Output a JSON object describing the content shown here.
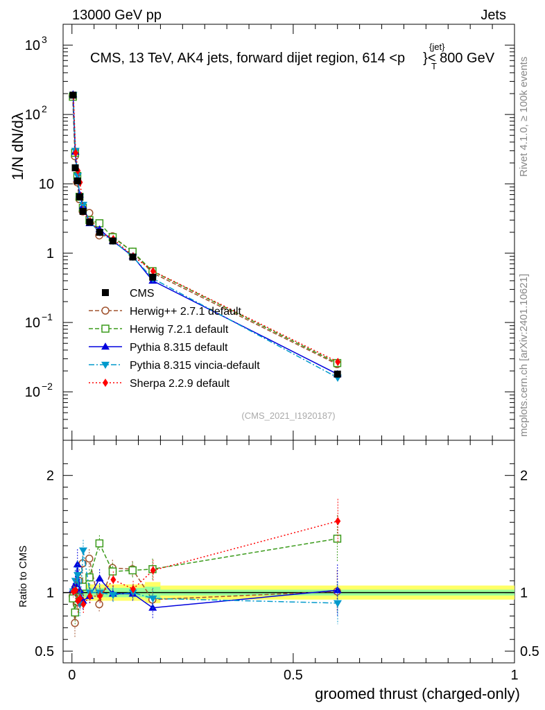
{
  "header": {
    "left": "13000 GeV pp",
    "right": "Jets"
  },
  "chart_data": {
    "type": "scatter",
    "title": "CMS, 13 TeV, AK4 jets, forward dijet region, 614 <p",
    "title_sup": "{jet}",
    "title_sub": "T",
    "title_tail": "}< 800 GeV",
    "xlabel": "groomed thrust (charged-only)",
    "ylabel_main": "1/N dN/dλ",
    "ylabel_ratio": "Ratio to CMS",
    "xlim": [
      -0.02,
      1.0
    ],
    "ylim": [
      0.002,
      2000
    ],
    "ratio_ylim": [
      0.4,
      2.3
    ],
    "yscale": "log",
    "x_ticks": [
      0,
      0.5,
      1
    ],
    "x_tick_labels": [
      "0",
      "0.5",
      "1"
    ],
    "y_ticks": [
      {
        "value": 0.01,
        "label": "10",
        "exp": "−2"
      },
      {
        "value": 0.1,
        "label": "10",
        "exp": "−1"
      },
      {
        "value": 1,
        "label": "1",
        "exp": ""
      },
      {
        "value": 10,
        "label": "10",
        "exp": ""
      },
      {
        "value": 100,
        "label": "10",
        "exp": "2"
      },
      {
        "value": 1000,
        "label": "10",
        "exp": "3"
      }
    ],
    "ratio_ticks": [
      {
        "value": 0.5,
        "label": "0.5"
      },
      {
        "value": 1,
        "label": "1"
      },
      {
        "value": 2,
        "label": "2"
      }
    ],
    "side_label_top": "Rivet 4.1.0, ≥ 100k events",
    "side_label_bottom": "mcplots.cern.ch [arXiv:2401.10621]",
    "analysis_id": "(CMS_2021_I1920187)",
    "x": [
      0.0025,
      0.0075,
      0.0125,
      0.0175,
      0.025,
      0.04,
      0.0625,
      0.0925,
      0.1375,
      0.1825,
      0.6
    ],
    "bin_edges": [
      0,
      0.005,
      0.01,
      0.015,
      0.02,
      0.03,
      0.05,
      0.075,
      0.11,
      0.165,
      0.2,
      1.0
    ],
    "data": {
      "name": "CMS",
      "values": [
        190,
        17,
        11,
        6.5,
        4.0,
        2.8,
        2.0,
        1.5,
        0.88,
        0.45,
        0.018
      ],
      "errors": [
        3,
        1,
        0.6,
        0.35,
        0.2,
        0.12,
        0.09,
        0.07,
        0.05,
        0.04,
        0.002
      ],
      "band_inner": [
        0.04,
        0.05,
        0.05,
        0.05,
        0.04,
        0.04,
        0.04,
        0.04,
        0.04,
        0.05,
        0.025
      ],
      "band_outer": [
        0.06,
        0.08,
        0.08,
        0.08,
        0.07,
        0.07,
        0.07,
        0.07,
        0.07,
        0.09,
        0.06
      ]
    },
    "series": [
      {
        "name": "Herwig++ 2.7.1 default",
        "color": "#a0522d",
        "marker": "circle-open",
        "dash": "6,3",
        "values": [
          185,
          25,
          10.5,
          6.0,
          4.0,
          3.8,
          1.8,
          1.75,
          1.05,
          0.52,
          0.025
        ],
        "ratio": [
          0.97,
          0.74,
          0.92,
          1.1,
          1.25,
          1.29,
          0.9,
          1.21,
          1.2,
          0.94,
          1.01
        ],
        "ratio_err": [
          0.05,
          0.13,
          0.1,
          0.1,
          0.09,
          0.08,
          0.07,
          0.07,
          0.07,
          0.09,
          0.18
        ]
      },
      {
        "name": "Herwig 7.2.1 default",
        "color": "#3a9a1a",
        "marker": "square-open",
        "dash": "6,3",
        "values": [
          180,
          28,
          13,
          6.5,
          4.5,
          3.0,
          2.7,
          1.7,
          1.05,
          0.55,
          0.026
        ],
        "ratio": [
          0.95,
          0.83,
          1.04,
          1.02,
          1.05,
          1.13,
          1.42,
          1.18,
          1.19,
          1.2,
          1.46
        ],
        "ratio_err": [
          0.05,
          0.1,
          0.1,
          0.09,
          0.08,
          0.07,
          0.07,
          0.07,
          0.07,
          0.09,
          0.2
        ]
      },
      {
        "name": "Pythia 8.315 default",
        "color": "#0000dd",
        "marker": "triangle-up",
        "dash": "",
        "values": [
          195,
          29,
          12,
          7.0,
          4.8,
          2.7,
          2.2,
          1.5,
          0.9,
          0.4,
          0.018
        ],
        "ratio": [
          1.03,
          1.07,
          1.24,
          1.02,
          0.93,
          0.97,
          1.12,
          0.99,
          0.99,
          0.87,
          1.02
        ],
        "ratio_err": [
          0.05,
          0.12,
          0.13,
          0.1,
          0.08,
          0.07,
          0.08,
          0.07,
          0.07,
          0.09,
          0.22
        ]
      },
      {
        "name": "Pythia 8.315 vincia-default",
        "color": "#0099cc",
        "marker": "triangle-down",
        "dash": "8,3,2,3",
        "values": [
          192,
          30,
          13,
          6.5,
          5.0,
          2.8,
          2.0,
          1.5,
          0.88,
          0.43,
          0.016
        ],
        "ratio": [
          1.01,
          1.1,
          1.15,
          0.9,
          1.36,
          1.0,
          1.0,
          0.98,
          1.0,
          0.95,
          0.91
        ],
        "ratio_err": [
          0.05,
          0.12,
          0.12,
          0.1,
          0.09,
          0.07,
          0.07,
          0.07,
          0.07,
          0.09,
          0.18
        ]
      },
      {
        "name": "Sherpa 2.2.9 default",
        "color": "#ff0000",
        "marker": "diamond",
        "dash": "2,3",
        "values": [
          188,
          28,
          15.5,
          10.5,
          4.0,
          2.9,
          2.0,
          1.6,
          0.9,
          0.55,
          0.027
        ],
        "ratio": [
          1.01,
          1.02,
          0.93,
          0.95,
          0.9,
          0.97,
          0.97,
          1.11,
          1.03,
          1.19,
          1.61
        ],
        "ratio_err": [
          0.05,
          0.1,
          0.1,
          0.09,
          0.08,
          0.07,
          0.07,
          0.07,
          0.07,
          0.09,
          0.19
        ]
      }
    ]
  }
}
